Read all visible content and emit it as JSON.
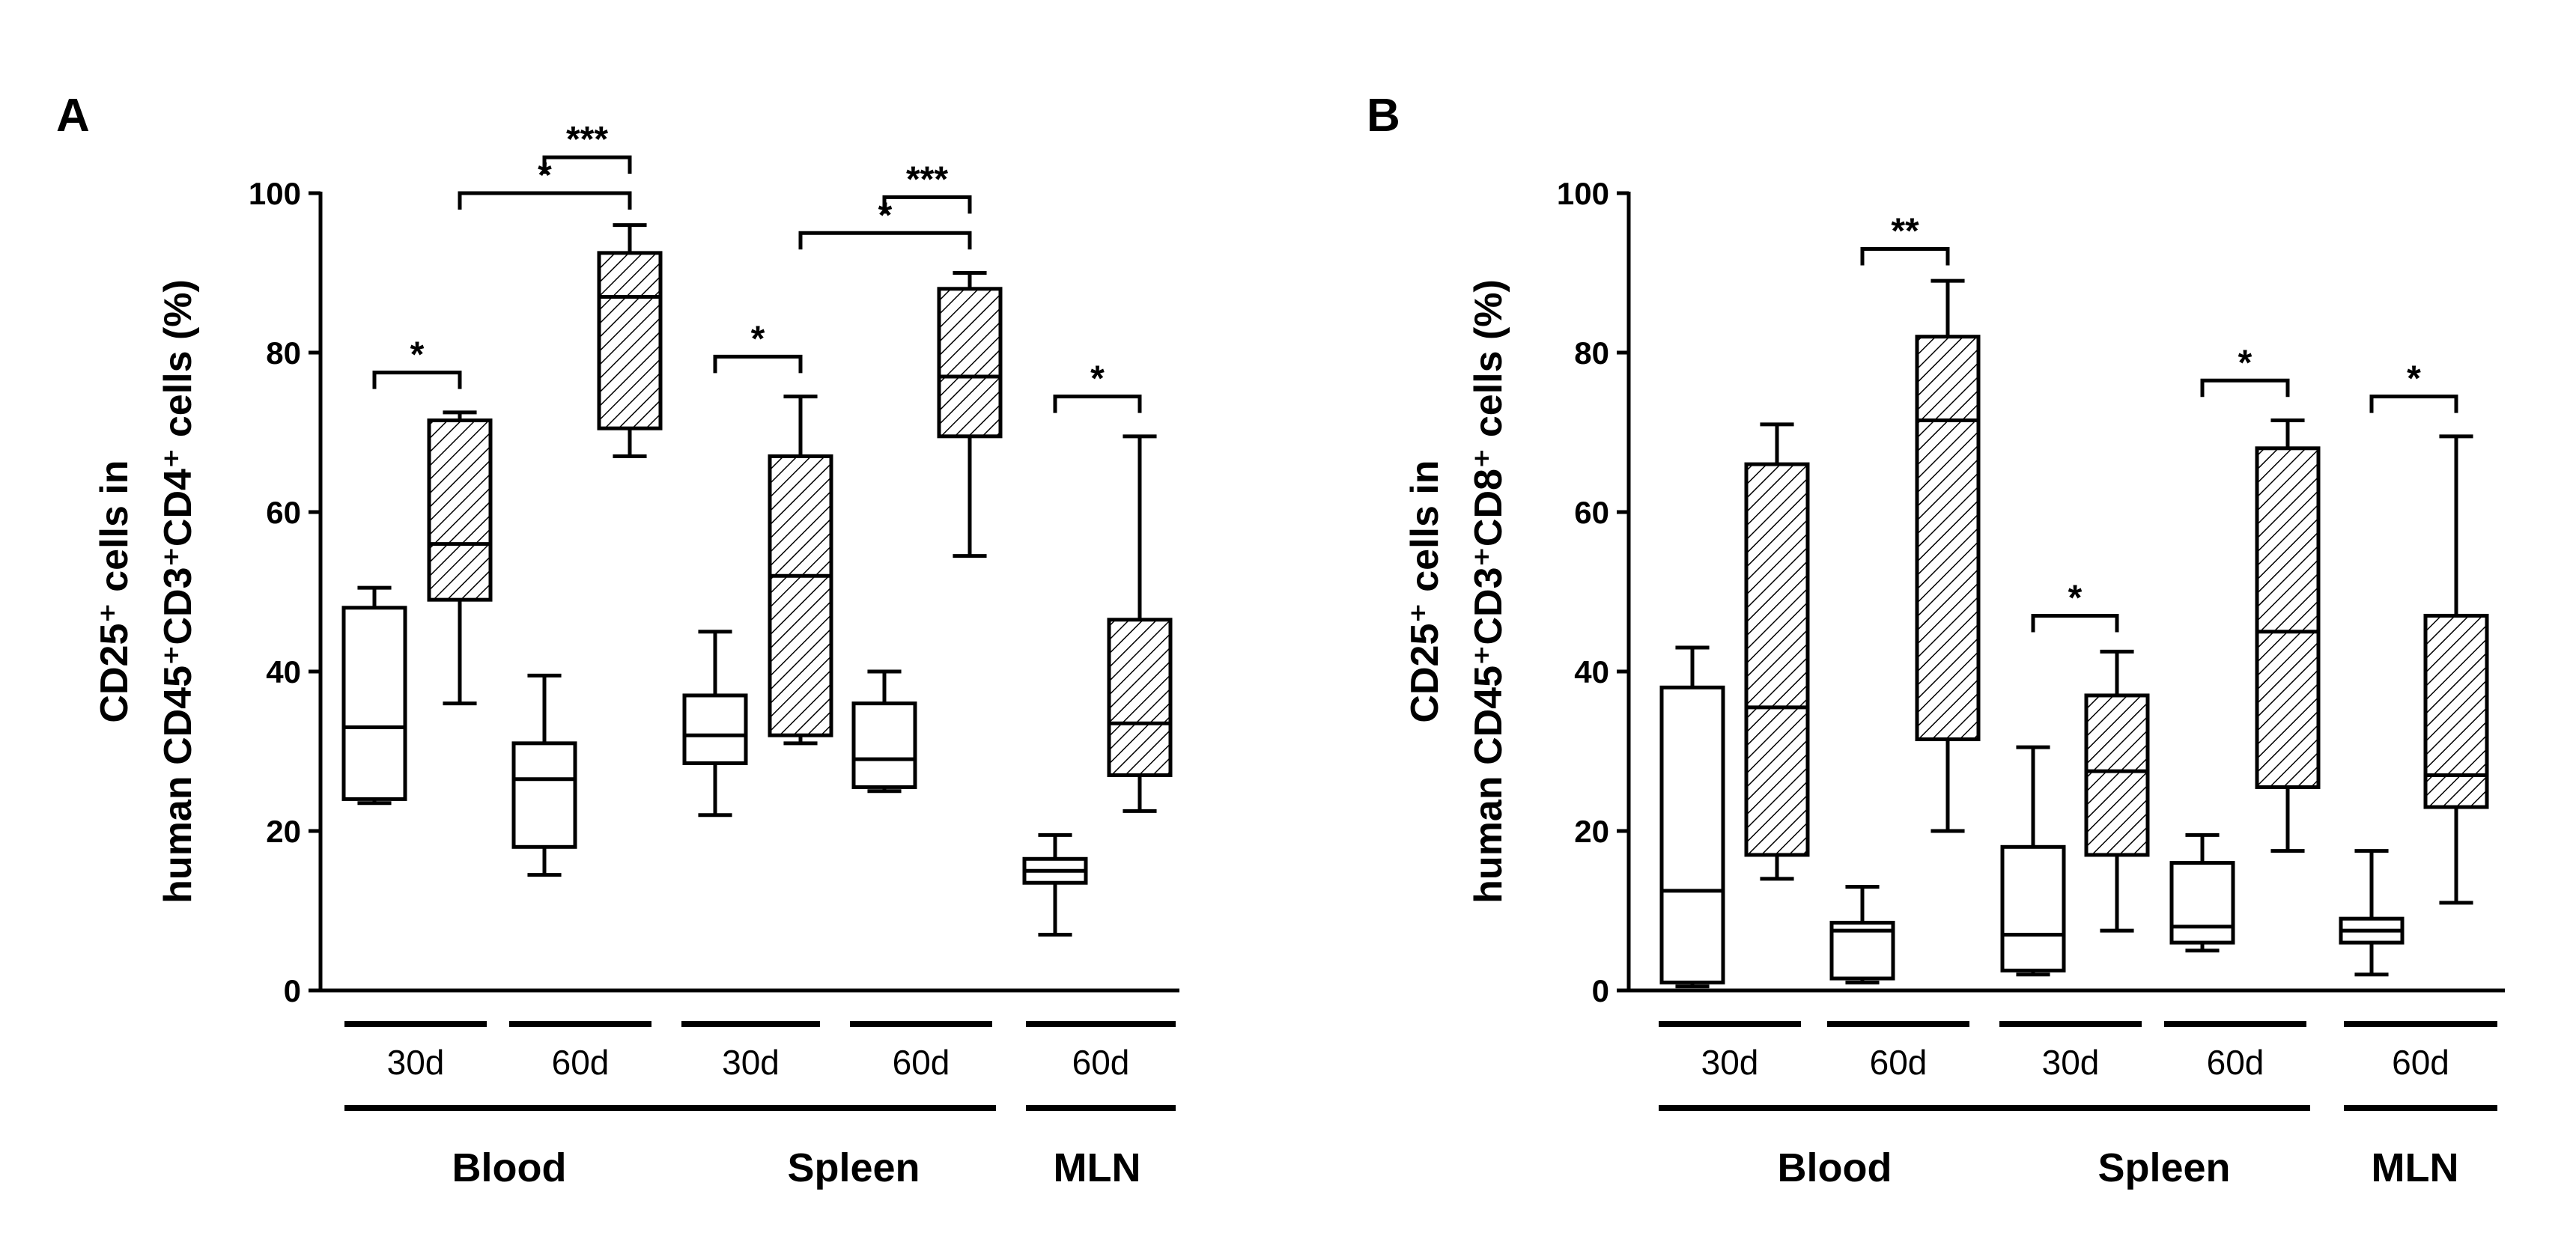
{
  "chart_data": [
    {
      "panel_label": "A",
      "type": "boxplot",
      "ylabel_line1": "CD25⁺ cells in",
      "ylabel_line2": "human CD45⁺CD3⁺CD4⁺ cells (%)",
      "ylim": [
        0,
        100
      ],
      "yticks": [
        "0",
        "20",
        "40",
        "60",
        "80",
        "100"
      ],
      "time_labels": [
        "30d",
        "60d",
        "30d",
        "60d",
        "60d"
      ],
      "tissue_labels": [
        "Blood",
        "Spleen",
        "MLN"
      ],
      "series": [
        {
          "name": "open",
          "fill": "none"
        },
        {
          "name": "hatched",
          "fill": "hatch"
        }
      ],
      "boxes": [
        {
          "group": "Blood 30d",
          "style": "open",
          "min": 23.5,
          "q1": 24,
          "median": 33,
          "q3": 48,
          "max": 50.5
        },
        {
          "group": "Blood 30d",
          "style": "hatched",
          "min": 36,
          "q1": 49,
          "median": 56,
          "q3": 71.5,
          "max": 72.5
        },
        {
          "group": "Blood 60d",
          "style": "open",
          "min": 14.5,
          "q1": 18,
          "median": 26.5,
          "q3": 31,
          "max": 39.5
        },
        {
          "group": "Blood 60d",
          "style": "hatched",
          "min": 67,
          "q1": 70.5,
          "median": 87,
          "q3": 92.5,
          "max": 96
        },
        {
          "group": "Spleen 30d",
          "style": "open",
          "min": 22,
          "q1": 28.5,
          "median": 32,
          "q3": 37,
          "max": 45
        },
        {
          "group": "Spleen 30d",
          "style": "hatched",
          "min": 31,
          "q1": 32,
          "median": 52,
          "q3": 67,
          "max": 74.5
        },
        {
          "group": "Spleen 60d",
          "style": "open",
          "min": 25,
          "q1": 25.5,
          "median": 29,
          "q3": 36,
          "max": 40
        },
        {
          "group": "Spleen 60d",
          "style": "hatched",
          "min": 54.5,
          "q1": 69.5,
          "median": 77,
          "q3": 88,
          "max": 90
        },
        {
          "group": "MLN 60d",
          "style": "open",
          "min": 7,
          "q1": 13.5,
          "median": 15,
          "q3": 16.5,
          "max": 19.5
        },
        {
          "group": "MLN 60d",
          "style": "hatched",
          "min": 22.5,
          "q1": 27,
          "median": 33.5,
          "q3": 46.5,
          "max": 69.5
        }
      ],
      "significance": [
        {
          "from": 0,
          "to": 1,
          "label": "*",
          "y": 77.5
        },
        {
          "from": 1,
          "to": 3,
          "label": "*",
          "y": 100
        },
        {
          "from": 2,
          "to": 3,
          "label": "***",
          "y": 104.5
        },
        {
          "from": 4,
          "to": 5,
          "label": "*",
          "y": 79.5
        },
        {
          "from": 5,
          "to": 7,
          "label": "*",
          "y": 95
        },
        {
          "from": 6,
          "to": 7,
          "label": "***",
          "y": 99.5
        },
        {
          "from": 8,
          "to": 9,
          "label": "*",
          "y": 74.5
        }
      ]
    },
    {
      "panel_label": "B",
      "type": "boxplot",
      "ylabel_line1": "CD25⁺ cells in",
      "ylabel_line2": "human CD45⁺CD3⁺CD8⁺ cells (%)",
      "ylim": [
        0,
        100
      ],
      "yticks": [
        "0",
        "20",
        "40",
        "60",
        "80",
        "100"
      ],
      "time_labels": [
        "30d",
        "60d",
        "30d",
        "60d",
        "60d"
      ],
      "tissue_labels": [
        "Blood",
        "Spleen",
        "MLN"
      ],
      "series": [
        {
          "name": "open",
          "fill": "none"
        },
        {
          "name": "hatched",
          "fill": "hatch"
        }
      ],
      "boxes": [
        {
          "group": "Blood 30d",
          "style": "open",
          "min": 0.5,
          "q1": 1,
          "median": 12.5,
          "q3": 38,
          "max": 43
        },
        {
          "group": "Blood 30d",
          "style": "hatched",
          "min": 14,
          "q1": 17,
          "median": 35.5,
          "q3": 66,
          "max": 71
        },
        {
          "group": "Blood 60d",
          "style": "open",
          "min": 1,
          "q1": 1.5,
          "median": 7.5,
          "q3": 8.5,
          "max": 13
        },
        {
          "group": "Blood 60d",
          "style": "hatched",
          "min": 20,
          "q1": 31.5,
          "median": 71.5,
          "q3": 82,
          "max": 89
        },
        {
          "group": "Spleen 30d",
          "style": "open",
          "min": 2,
          "q1": 2.5,
          "median": 7,
          "q3": 18,
          "max": 30.5
        },
        {
          "group": "Spleen 30d",
          "style": "hatched",
          "min": 7.5,
          "q1": 17,
          "median": 27.5,
          "q3": 37,
          "max": 42.5
        },
        {
          "group": "Spleen 60d",
          "style": "open",
          "min": 5,
          "q1": 6,
          "median": 8,
          "q3": 16,
          "max": 19.5
        },
        {
          "group": "Spleen 60d",
          "style": "hatched",
          "min": 17.5,
          "q1": 25.5,
          "median": 45,
          "q3": 68,
          "max": 71.5
        },
        {
          "group": "MLN 60d",
          "style": "open",
          "min": 2,
          "q1": 6,
          "median": 7.5,
          "q3": 9,
          "max": 17.5
        },
        {
          "group": "MLN 60d",
          "style": "hatched",
          "min": 11,
          "q1": 23,
          "median": 27,
          "q3": 47,
          "max": 69.5
        }
      ],
      "significance": [
        {
          "from": 2,
          "to": 3,
          "label": "**",
          "y": 93
        },
        {
          "from": 4,
          "to": 5,
          "label": "*",
          "y": 47
        },
        {
          "from": 6,
          "to": 7,
          "label": "*",
          "y": 76.5
        },
        {
          "from": 8,
          "to": 9,
          "label": "*",
          "y": 74.5
        }
      ]
    }
  ]
}
